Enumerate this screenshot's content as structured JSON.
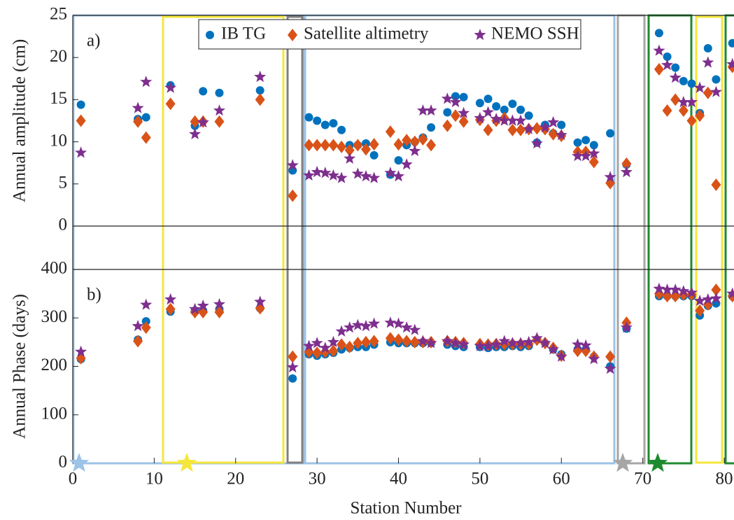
{
  "chart_data": [
    {
      "type": "scatter",
      "panel_label": "a)",
      "ylabel": "Annual amplitude (cm)",
      "legend": "top",
      "x": [
        1,
        8,
        9,
        12,
        15,
        16,
        18,
        23,
        27,
        29,
        30,
        31,
        32,
        33,
        34,
        35,
        36,
        37,
        39,
        40,
        41,
        42,
        43,
        44,
        46,
        47,
        48,
        50,
        51,
        52,
        53,
        54,
        55,
        56,
        57,
        58,
        59,
        60,
        62,
        63,
        64,
        66,
        68,
        72,
        73,
        74,
        75,
        76,
        77,
        78,
        79,
        81
      ],
      "xlim": [
        0,
        81.2
      ],
      "ylim": [
        0,
        25
      ],
      "yticks": [
        0,
        5,
        10,
        15,
        20,
        25
      ],
      "series": [
        {
          "name": "IB TG",
          "color": "#0072bd",
          "marker": "circle",
          "values": [
            14.4,
            12.7,
            12.9,
            16.7,
            11.9,
            16.0,
            15.8,
            16.1,
            6.6,
            12.9,
            12.5,
            12.0,
            12.2,
            11.4,
            9.6,
            9.6,
            9.8,
            8.4,
            6.1,
            7.8,
            9.6,
            10.0,
            10.5,
            11.7,
            13.5,
            15.4,
            15.3,
            14.6,
            15.1,
            14.2,
            13.8,
            14.5,
            13.8,
            13.1,
            9.9,
            12.0,
            11.0,
            12.0,
            9.9,
            10.2,
            9.6,
            11.0,
            7.3,
            22.9,
            20.1,
            18.8,
            17.2,
            16.9,
            13.4,
            21.1,
            17.4,
            21.7
          ]
        },
        {
          "name": "Satellite altimetry",
          "color": "#d95319",
          "marker": "diamond",
          "values": [
            12.5,
            12.4,
            10.5,
            14.5,
            12.4,
            12.4,
            12.4,
            15.0,
            3.6,
            9.6,
            9.6,
            9.6,
            9.6,
            9.4,
            9.0,
            9.6,
            9.1,
            9.7,
            11.2,
            9.7,
            10.2,
            10.0,
            10.3,
            9.6,
            11.9,
            13.1,
            12.4,
            12.6,
            11.4,
            12.5,
            12.8,
            11.4,
            11.4,
            11.5,
            11.6,
            11.5,
            10.9,
            10.7,
            8.8,
            8.8,
            7.6,
            5.1,
            7.4,
            18.6,
            13.7,
            15.0,
            13.7,
            12.5,
            13.1,
            15.8,
            4.9,
            18.9
          ]
        },
        {
          "name": "NEMO SSH",
          "color": "#7e2f8e",
          "marker": "star",
          "values": [
            8.7,
            14.0,
            17.1,
            16.4,
            10.9,
            12.3,
            13.7,
            17.7,
            7.2,
            6.0,
            6.4,
            6.3,
            6.0,
            5.7,
            8.0,
            6.2,
            5.9,
            5.7,
            6.3,
            5.9,
            7.3,
            8.9,
            13.7,
            13.7,
            15.1,
            14.7,
            13.4,
            12.8,
            13.5,
            12.7,
            12.5,
            12.5,
            12.5,
            11.5,
            9.8,
            11.7,
            12.3,
            10.8,
            8.3,
            8.3,
            8.6,
            5.8,
            6.4,
            20.8,
            19.1,
            17.6,
            14.7,
            14.7,
            16.4,
            19.4,
            15.9,
            19.2
          ]
        }
      ]
    },
    {
      "type": "scatter",
      "panel_label": "b)",
      "ylabel": "Annual Phase (days)",
      "xlabel": "Station Number",
      "x": [
        1,
        8,
        9,
        12,
        15,
        16,
        18,
        23,
        27,
        29,
        30,
        31,
        32,
        33,
        34,
        35,
        36,
        37,
        39,
        40,
        41,
        42,
        43,
        44,
        46,
        47,
        48,
        50,
        51,
        52,
        53,
        54,
        55,
        56,
        57,
        58,
        59,
        60,
        62,
        63,
        64,
        66,
        68,
        72,
        73,
        74,
        75,
        76,
        77,
        78,
        79,
        81
      ],
      "xlim": [
        0,
        81.2
      ],
      "xticks": [
        0,
        10,
        20,
        30,
        40,
        50,
        60,
        70,
        80
      ],
      "ylim": [
        0,
        400
      ],
      "yticks": [
        0,
        100,
        200,
        300,
        400
      ],
      "series": [
        {
          "color": "#0072bd",
          "marker": "circle",
          "values": [
            215,
            255,
            293,
            313,
            315,
            315,
            318,
            320,
            175,
            225,
            222,
            225,
            228,
            235,
            238,
            240,
            240,
            245,
            250,
            248,
            248,
            248,
            248,
            248,
            245,
            242,
            240,
            240,
            238,
            240,
            240,
            242,
            240,
            242,
            255,
            248,
            235,
            225,
            235,
            235,
            220,
            200,
            278,
            345,
            345,
            345,
            345,
            345,
            305,
            325,
            330,
            345
          ]
        },
        {
          "color": "#d95319",
          "marker": "diamond",
          "values": [
            217,
            252,
            280,
            318,
            312,
            312,
            312,
            320,
            220,
            230,
            228,
            230,
            232,
            245,
            240,
            248,
            250,
            252,
            258,
            255,
            252,
            250,
            250,
            250,
            252,
            250,
            248,
            246,
            245,
            246,
            246,
            246,
            246,
            246,
            255,
            248,
            238,
            222,
            232,
            232,
            220,
            220,
            290,
            350,
            345,
            345,
            348,
            348,
            315,
            328,
            358,
            345
          ]
        },
        {
          "color": "#7e2f8e",
          "marker": "star",
          "values": [
            230,
            283,
            327,
            338,
            318,
            325,
            328,
            333,
            198,
            242,
            248,
            238,
            250,
            272,
            280,
            285,
            283,
            288,
            290,
            288,
            280,
            275,
            252,
            248,
            252,
            248,
            245,
            242,
            242,
            245,
            252,
            248,
            248,
            250,
            258,
            248,
            235,
            220,
            245,
            243,
            215,
            195,
            280,
            360,
            358,
            358,
            355,
            352,
            335,
            338,
            340,
            350
          ]
        }
      ]
    }
  ]
}
